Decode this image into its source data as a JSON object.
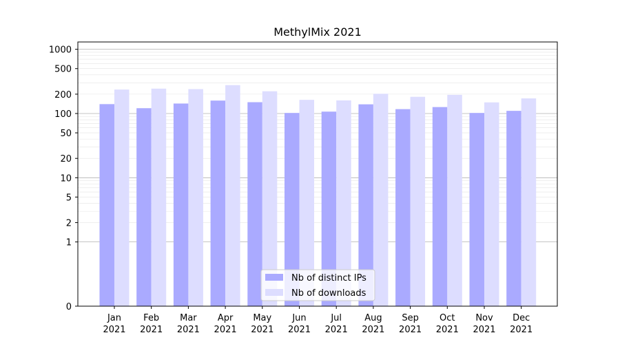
{
  "chart_data": {
    "type": "bar",
    "title": "MethylMix 2021",
    "xlabel": "",
    "ylabel": "",
    "yscale": "symlog",
    "ylim": [
      0,
      1300
    ],
    "grid": true,
    "legend_position": "bottom-center",
    "categories": [
      [
        "Jan",
        "2021"
      ],
      [
        "Feb",
        "2021"
      ],
      [
        "Mar",
        "2021"
      ],
      [
        "Apr",
        "2021"
      ],
      [
        "May",
        "2021"
      ],
      [
        "Jun",
        "2021"
      ],
      [
        "Jul",
        "2021"
      ],
      [
        "Aug",
        "2021"
      ],
      [
        "Sep",
        "2021"
      ],
      [
        "Oct",
        "2021"
      ],
      [
        "Nov",
        "2021"
      ],
      [
        "Dec",
        "2021"
      ]
    ],
    "y_ticks": [
      "0",
      "1",
      "2",
      "5",
      "10",
      "20",
      "50",
      "100",
      "200",
      "500",
      "1000"
    ],
    "series": [
      {
        "name": "Nb of distinct IPs",
        "color": "#aaaaff",
        "values": [
          140,
          121,
          143,
          159,
          150,
          102,
          107,
          139,
          117,
          126,
          102,
          110
        ]
      },
      {
        "name": "Nb of downloads",
        "color": "#ddddff",
        "values": [
          236,
          244,
          240,
          277,
          222,
          163,
          160,
          203,
          182,
          195,
          149,
          172
        ]
      }
    ]
  }
}
